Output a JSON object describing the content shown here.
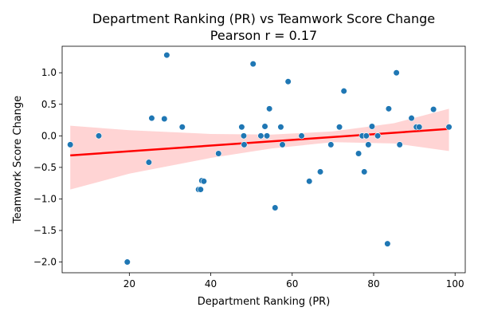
{
  "chart_data": {
    "type": "scatter",
    "title": "Department Ranking (PR) vs Teamwork Score Change",
    "subtitle": "Pearson r = 0.17",
    "xlabel": "Department Ranking (PR)",
    "ylabel": "Teamwork Score Change",
    "xlim": [
      3.5,
      102.5
    ],
    "ylim": [
      -2.17,
      1.42
    ],
    "x_ticks": [
      20,
      40,
      60,
      80,
      100
    ],
    "y_ticks": [
      -2.0,
      -1.5,
      -1.0,
      -0.5,
      0.0,
      0.5,
      1.0
    ],
    "x_tick_labels": [
      "20",
      "40",
      "60",
      "80",
      "100"
    ],
    "y_tick_labels": [
      "−2.0",
      "−1.5",
      "−1.0",
      "−0.5",
      "0.0",
      "0.5",
      "1.0"
    ],
    "grid": false,
    "colors": {
      "points": "#1f77b4",
      "regression": "#ff0000",
      "band": "#ffcccc"
    },
    "regression": {
      "x": [
        5.5,
        98.5
      ],
      "y": [
        -0.31,
        0.11
      ]
    },
    "confidence_band": {
      "x": [
        5.5,
        20,
        40,
        55,
        70,
        85,
        98.5
      ],
      "upper": [
        0.16,
        0.09,
        0.03,
        0.02,
        0.07,
        0.2,
        0.43
      ],
      "lower": [
        -0.85,
        -0.6,
        -0.35,
        -0.2,
        -0.1,
        -0.12,
        -0.24
      ]
    },
    "points": [
      {
        "x": 5.5,
        "y": -0.14
      },
      {
        "x": 12.5,
        "y": 0.0
      },
      {
        "x": 19.5,
        "y": -2.0
      },
      {
        "x": 24.8,
        "y": -0.42
      },
      {
        "x": 25.5,
        "y": 0.28
      },
      {
        "x": 28.6,
        "y": 0.27
      },
      {
        "x": 29.2,
        "y": 1.28
      },
      {
        "x": 33.0,
        "y": 0.14
      },
      {
        "x": 37.0,
        "y": -0.85
      },
      {
        "x": 37.5,
        "y": -0.85
      },
      {
        "x": 37.8,
        "y": -0.71
      },
      {
        "x": 38.3,
        "y": -0.72
      },
      {
        "x": 41.9,
        "y": -0.28
      },
      {
        "x": 47.6,
        "y": 0.14
      },
      {
        "x": 48.1,
        "y": 0.0
      },
      {
        "x": 48.2,
        "y": -0.14
      },
      {
        "x": 50.4,
        "y": 1.14
      },
      {
        "x": 52.3,
        "y": 0.0
      },
      {
        "x": 53.3,
        "y": 0.15
      },
      {
        "x": 53.8,
        "y": 0.0
      },
      {
        "x": 54.4,
        "y": 0.43
      },
      {
        "x": 55.8,
        "y": -1.14
      },
      {
        "x": 57.2,
        "y": 0.14
      },
      {
        "x": 57.6,
        "y": -0.14
      },
      {
        "x": 59.0,
        "y": 0.86
      },
      {
        "x": 62.3,
        "y": 0.0
      },
      {
        "x": 64.2,
        "y": -0.72
      },
      {
        "x": 66.9,
        "y": -0.57
      },
      {
        "x": 69.5,
        "y": -0.14
      },
      {
        "x": 71.6,
        "y": 0.14
      },
      {
        "x": 72.7,
        "y": 0.71
      },
      {
        "x": 76.3,
        "y": -0.28
      },
      {
        "x": 77.2,
        "y": 0.0
      },
      {
        "x": 77.7,
        "y": -0.57
      },
      {
        "x": 78.2,
        "y": 0.0
      },
      {
        "x": 78.7,
        "y": -0.14
      },
      {
        "x": 79.6,
        "y": 0.15
      },
      {
        "x": 81.0,
        "y": 0.0
      },
      {
        "x": 83.4,
        "y": -1.71
      },
      {
        "x": 83.7,
        "y": 0.43
      },
      {
        "x": 85.6,
        "y": 1.0
      },
      {
        "x": 86.4,
        "y": -0.14
      },
      {
        "x": 89.3,
        "y": 0.28
      },
      {
        "x": 90.5,
        "y": 0.14
      },
      {
        "x": 91.2,
        "y": 0.14
      },
      {
        "x": 94.7,
        "y": 0.42
      },
      {
        "x": 98.5,
        "y": 0.14
      }
    ]
  }
}
